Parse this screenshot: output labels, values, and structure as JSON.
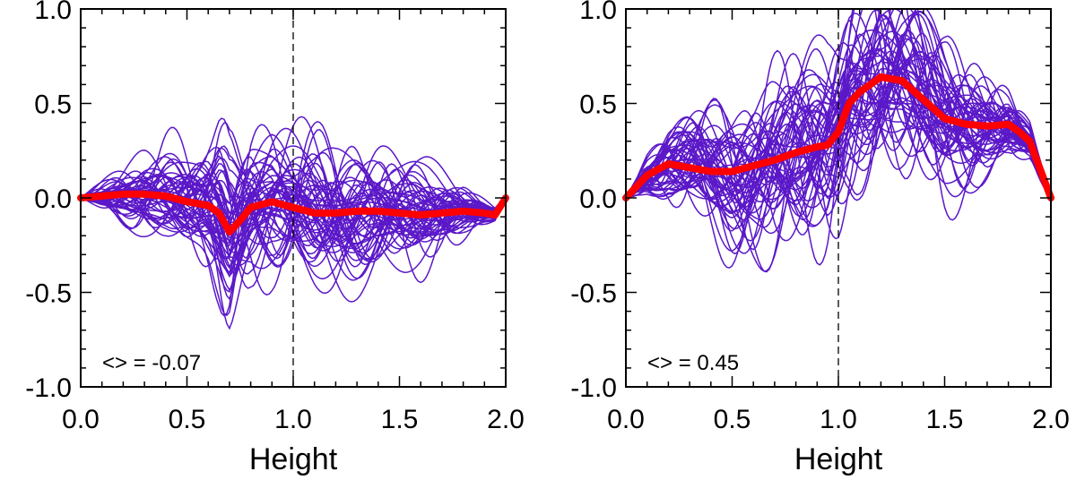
{
  "chart_data": [
    {
      "type": "line",
      "xlabel": "Height",
      "ylabel": "",
      "xlim": [
        0.0,
        2.0
      ],
      "ylim": [
        -1.0,
        1.0
      ],
      "xticks": [
        "0.0",
        "0.5",
        "1.0",
        "1.5",
        "2.0"
      ],
      "yticks": [
        "1.0",
        "0.5",
        "0.0",
        "-0.5",
        "-1.0"
      ],
      "reference_line_x": 1.0,
      "annotation": "<> = -0.07",
      "colors": {
        "samples": "#5b18c8",
        "mean": "#ff0000",
        "reference": "#000000"
      },
      "mean_series": {
        "name": "mean",
        "x": [
          0.0,
          0.1,
          0.2,
          0.3,
          0.4,
          0.5,
          0.6,
          0.65,
          0.7,
          0.75,
          0.8,
          0.9,
          1.0,
          1.1,
          1.2,
          1.3,
          1.4,
          1.5,
          1.6,
          1.7,
          1.8,
          1.9,
          1.95,
          2.0
        ],
        "y": [
          0.0,
          0.01,
          0.02,
          0.02,
          0.01,
          -0.02,
          -0.04,
          -0.08,
          -0.18,
          -0.12,
          -0.05,
          -0.02,
          -0.05,
          -0.08,
          -0.08,
          -0.07,
          -0.07,
          -0.08,
          -0.09,
          -0.08,
          -0.07,
          -0.08,
          -0.09,
          0.0
        ]
      },
      "sample_style": {
        "n_curves": 55,
        "amplitude": 0.22,
        "seed": 7
      }
    },
    {
      "type": "line",
      "xlabel": "Height",
      "ylabel": "",
      "xlim": [
        0.0,
        2.0
      ],
      "ylim": [
        -1.0,
        1.0
      ],
      "xticks": [
        "0.0",
        "0.5",
        "1.0",
        "1.5",
        "2.0"
      ],
      "yticks": [
        "1.0",
        "0.5",
        "0.0",
        "-0.5",
        "-1.0"
      ],
      "reference_line_x": 1.0,
      "annotation": "<> = 0.45",
      "colors": {
        "samples": "#5b18c8",
        "mean": "#ff0000",
        "reference": "#000000"
      },
      "mean_series": {
        "name": "mean",
        "x": [
          0.0,
          0.1,
          0.2,
          0.3,
          0.4,
          0.5,
          0.6,
          0.7,
          0.8,
          0.9,
          0.95,
          1.0,
          1.05,
          1.1,
          1.2,
          1.3,
          1.4,
          1.5,
          1.6,
          1.7,
          1.8,
          1.85,
          1.9,
          1.95,
          2.0
        ],
        "y": [
          0.0,
          0.12,
          0.18,
          0.16,
          0.14,
          0.14,
          0.17,
          0.2,
          0.24,
          0.27,
          0.28,
          0.35,
          0.5,
          0.56,
          0.64,
          0.62,
          0.52,
          0.42,
          0.39,
          0.38,
          0.39,
          0.35,
          0.3,
          0.15,
          0.0
        ]
      },
      "sample_style": {
        "n_curves": 55,
        "amplitude": 0.35,
        "seed": 13
      }
    }
  ]
}
